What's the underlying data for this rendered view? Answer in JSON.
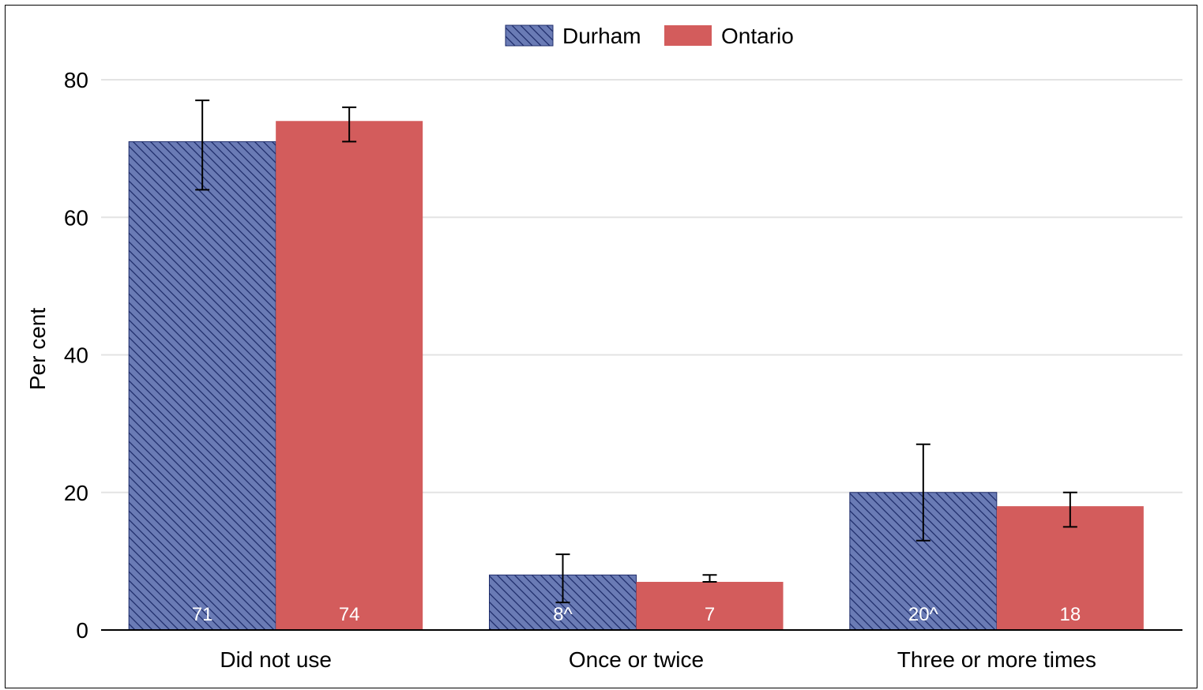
{
  "chart_data": {
    "type": "bar",
    "categories": [
      "Did not use",
      "Once or twice",
      "Three or more times"
    ],
    "series": [
      {
        "name": "Durham",
        "values": [
          71,
          8,
          20
        ],
        "labels": [
          "71",
          "8^",
          "20^"
        ],
        "error_low": [
          64,
          4,
          13
        ],
        "error_high": [
          77,
          11,
          27
        ],
        "color": "#6a7bb5",
        "hatch": true
      },
      {
        "name": "Ontario",
        "values": [
          74,
          7,
          18
        ],
        "labels": [
          "74",
          "7",
          "18"
        ],
        "error_low": [
          71,
          7,
          15
        ],
        "error_high": [
          76,
          8,
          20
        ],
        "color": "#d35c5c",
        "hatch": false
      }
    ],
    "xlabel": "",
    "ylabel": "Per cent",
    "ylim": [
      0,
      80
    ],
    "yticks": [
      0,
      20,
      40,
      60,
      80
    ],
    "grid": true,
    "legend_position": "top-center"
  }
}
